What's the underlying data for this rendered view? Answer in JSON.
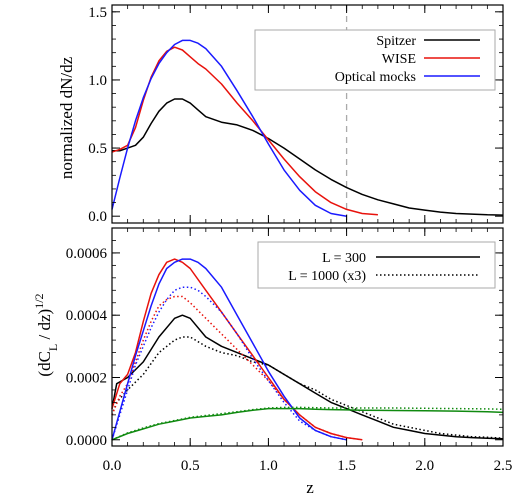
{
  "chart_data": [
    {
      "type": "line",
      "panel": "top",
      "xlabel": "",
      "ylabel": "normalized dN/dz",
      "xlim": [
        0,
        2.5
      ],
      "ylim": [
        -0.05,
        1.55
      ],
      "xticks": [
        0.0,
        0.5,
        1.0,
        1.5,
        2.0,
        2.5
      ],
      "yticks": [
        0.0,
        0.5,
        1.0,
        1.5
      ],
      "yticklabels": [
        "0.0",
        "0.5",
        "1.0",
        "1.5"
      ],
      "grid": false,
      "legend": "top-right",
      "annotations": [
        {
          "type": "vline",
          "x": 1.5,
          "style": "dashed",
          "color": "#aaaaaa"
        }
      ],
      "series": [
        {
          "name": "Spitzer",
          "color": "#000000",
          "style": "solid",
          "x": [
            0,
            0.05,
            0.1,
            0.15,
            0.2,
            0.25,
            0.3,
            0.35,
            0.4,
            0.45,
            0.5,
            0.55,
            0.6,
            0.7,
            0.8,
            0.9,
            1.0,
            1.1,
            1.2,
            1.3,
            1.4,
            1.5,
            1.6,
            1.7,
            1.8,
            1.9,
            2.0,
            2.1,
            2.2,
            2.3,
            2.4,
            2.5
          ],
          "y": [
            0.48,
            0.48,
            0.5,
            0.52,
            0.58,
            0.68,
            0.77,
            0.83,
            0.86,
            0.86,
            0.83,
            0.78,
            0.73,
            0.69,
            0.67,
            0.63,
            0.57,
            0.5,
            0.42,
            0.34,
            0.27,
            0.21,
            0.16,
            0.12,
            0.09,
            0.06,
            0.045,
            0.03,
            0.02,
            0.015,
            0.01,
            0.008
          ]
        },
        {
          "name": "WISE",
          "color": "#e8120c",
          "style": "solid",
          "x": [
            0,
            0.05,
            0.1,
            0.15,
            0.2,
            0.25,
            0.3,
            0.35,
            0.4,
            0.45,
            0.5,
            0.55,
            0.6,
            0.7,
            0.8,
            0.9,
            1.0,
            1.1,
            1.2,
            1.3,
            1.4,
            1.5,
            1.6,
            1.7
          ],
          "y": [
            0.47,
            0.49,
            0.52,
            0.65,
            0.85,
            1.02,
            1.14,
            1.21,
            1.24,
            1.22,
            1.17,
            1.12,
            1.08,
            0.97,
            0.83,
            0.7,
            0.56,
            0.42,
            0.29,
            0.18,
            0.1,
            0.05,
            0.02,
            0.01
          ]
        },
        {
          "name": "Optical mocks",
          "color": "#1a1aff",
          "style": "solid",
          "x": [
            0,
            0.05,
            0.1,
            0.15,
            0.2,
            0.25,
            0.3,
            0.35,
            0.4,
            0.45,
            0.5,
            0.55,
            0.6,
            0.7,
            0.8,
            0.9,
            1.0,
            1.1,
            1.2,
            1.3,
            1.4,
            1.5
          ],
          "y": [
            0.05,
            0.28,
            0.5,
            0.7,
            0.87,
            1.01,
            1.12,
            1.2,
            1.26,
            1.29,
            1.29,
            1.27,
            1.23,
            1.1,
            0.92,
            0.73,
            0.53,
            0.34,
            0.19,
            0.08,
            0.02,
            0.0
          ]
        }
      ]
    },
    {
      "type": "line",
      "panel": "bottom",
      "xlabel": "z",
      "ylabel": "(dC_L / dz)^1/2",
      "xlim": [
        0,
        2.5
      ],
      "ylim": [
        -2e-05,
        0.00068
      ],
      "xticks": [
        0.0,
        0.5,
        1.0,
        1.5,
        2.0,
        2.5
      ],
      "xticklabels": [
        "0.0",
        "0.5",
        "1.0",
        "1.5",
        "2.0",
        "2.5"
      ],
      "yticks": [
        0.0,
        0.0002,
        0.0004,
        0.0006
      ],
      "yticklabels": [
        "0.0000",
        "0.0002",
        "0.0004",
        "0.0006"
      ],
      "grid": false,
      "legend": "top-right",
      "legend_entries": [
        {
          "label": "L = 300",
          "style": "solid"
        },
        {
          "label": "L = 1000 (x3)",
          "style": "dotted"
        }
      ],
      "series": [
        {
          "legend": "Spitzer",
          "color": "#000000",
          "style": "solid",
          "x": [
            0,
            0.03,
            0.1,
            0.2,
            0.3,
            0.4,
            0.45,
            0.5,
            0.6,
            0.7,
            0.8,
            0.9,
            1.0,
            1.1,
            1.2,
            1.3,
            1.4,
            1.5,
            1.6,
            1.7,
            1.8,
            1.9,
            2.0,
            2.1,
            2.2,
            2.3,
            2.4,
            2.5
          ],
          "y": [
            0.0001,
            0.00018,
            0.0002,
            0.00025,
            0.00033,
            0.00039,
            0.0004,
            0.00039,
            0.00033,
            0.0003,
            0.00028,
            0.00026,
            0.00024,
            0.00021,
            0.00018,
            0.00015,
            0.00012,
            0.0001,
            8e-05,
            6e-05,
            4e-05,
            3e-05,
            2e-05,
            1.5e-05,
            1e-05,
            7e-06,
            5e-06,
            3e-06
          ]
        },
        {
          "legend": "Spitzer",
          "color": "#000000",
          "style": "dotted",
          "x": [
            0,
            0.03,
            0.1,
            0.2,
            0.3,
            0.4,
            0.45,
            0.5,
            0.6,
            0.7,
            0.8,
            0.9,
            1.0,
            1.1,
            1.2,
            1.3,
            1.4,
            1.5,
            1.6,
            1.7,
            1.8,
            1.9,
            2.0,
            2.1,
            2.2,
            2.3,
            2.4,
            2.5
          ],
          "y": [
            8e-05,
            0.00012,
            0.00016,
            0.00021,
            0.00028,
            0.00032,
            0.00033,
            0.00033,
            0.0003,
            0.00028,
            0.00027,
            0.00025,
            0.00024,
            0.00021,
            0.00018,
            0.00016,
            0.00013,
            0.00011,
            9e-05,
            7e-05,
            5e-05,
            4e-05,
            3e-05,
            2e-05,
            1.5e-05,
            1e-05,
            8e-06,
            5e-06
          ]
        },
        {
          "legend": "WISE",
          "color": "#e8120c",
          "style": "solid",
          "x": [
            0,
            0.05,
            0.1,
            0.15,
            0.2,
            0.25,
            0.3,
            0.35,
            0.4,
            0.45,
            0.5,
            0.6,
            0.7,
            0.8,
            0.9,
            1.0,
            1.1,
            1.2,
            1.3,
            1.4,
            1.5,
            1.6
          ],
          "y": [
            0.0001,
            0.00018,
            0.00021,
            0.00028,
            0.00038,
            0.00047,
            0.00053,
            0.00057,
            0.00058,
            0.00057,
            0.00055,
            0.00048,
            0.00041,
            0.00034,
            0.00027,
            0.0002,
            0.00013,
            8e-05,
            4e-05,
            2e-05,
            7e-06,
            0.0
          ]
        },
        {
          "legend": "WISE",
          "color": "#e8120c",
          "style": "dotted",
          "x": [
            0,
            0.05,
            0.1,
            0.15,
            0.2,
            0.25,
            0.3,
            0.35,
            0.4,
            0.45,
            0.5,
            0.6,
            0.7,
            0.8,
            0.9,
            1.0,
            1.1,
            1.2,
            1.3,
            1.4,
            1.5,
            1.6
          ],
          "y": [
            8e-05,
            0.00014,
            0.00018,
            0.00025,
            0.00032,
            0.00038,
            0.00043,
            0.00045,
            0.00046,
            0.00046,
            0.00044,
            0.00039,
            0.00034,
            0.00029,
            0.00024,
            0.00019,
            0.00013,
            8e-05,
            4e-05,
            2e-05,
            7e-06,
            0.0
          ]
        },
        {
          "legend": "Optical mocks",
          "color": "#1a1aff",
          "style": "solid",
          "x": [
            0,
            0.05,
            0.1,
            0.15,
            0.2,
            0.25,
            0.3,
            0.35,
            0.4,
            0.45,
            0.5,
            0.55,
            0.6,
            0.7,
            0.8,
            0.9,
            1.0,
            1.1,
            1.2,
            1.3,
            1.4,
            1.5
          ],
          "y": [
            0.0,
            9e-05,
            0.00018,
            0.00027,
            0.00035,
            0.00043,
            0.0005,
            0.00055,
            0.00057,
            0.00058,
            0.00058,
            0.00057,
            0.00055,
            0.00049,
            0.0004,
            0.00031,
            0.00022,
            0.00014,
            7e-05,
            3e-05,
            1e-05,
            0.0
          ]
        },
        {
          "legend": "Optical mocks",
          "color": "#1a1aff",
          "style": "dotted",
          "x": [
            0,
            0.05,
            0.1,
            0.15,
            0.2,
            0.25,
            0.3,
            0.35,
            0.4,
            0.45,
            0.5,
            0.55,
            0.6,
            0.7,
            0.8,
            0.9,
            1.0,
            1.1,
            1.2,
            1.3,
            1.4,
            1.5
          ],
          "y": [
            0.0,
            8e-05,
            0.00016,
            0.00024,
            0.0003,
            0.00036,
            0.00041,
            0.00045,
            0.00048,
            0.00049,
            0.00049,
            0.00048,
            0.00046,
            0.00041,
            0.00034,
            0.00026,
            0.00019,
            0.00012,
            6e-05,
            3e-05,
            1e-05,
            0.0
          ]
        },
        {
          "color": "#108a10",
          "style": "solid",
          "x": [
            0,
            0.1,
            0.2,
            0.3,
            0.4,
            0.5,
            0.6,
            0.7,
            0.8,
            0.9,
            1.0,
            1.1,
            1.2,
            1.3,
            1.4,
            1.5,
            1.6,
            1.8,
            2.0,
            2.2,
            2.4,
            2.5
          ],
          "y": [
            0.0,
            2e-05,
            3.5e-05,
            5e-05,
            6e-05,
            7e-05,
            7.5e-05,
            8e-05,
            8.8e-05,
            9.5e-05,
            0.0001,
            0.0001,
            0.0001,
            9.8e-05,
            9.7e-05,
            9.6e-05,
            9.5e-05,
            9.4e-05,
            9.3e-05,
            9.2e-05,
            9e-05,
            8.8e-05
          ]
        },
        {
          "color": "#108a10",
          "style": "dotted",
          "x": [
            0,
            0.1,
            0.2,
            0.3,
            0.4,
            0.5,
            0.6,
            0.7,
            0.8,
            0.9,
            1.0,
            1.1,
            1.2,
            1.3,
            1.4,
            1.5,
            1.6,
            1.8,
            2.0,
            2.2,
            2.4,
            2.5
          ],
          "y": [
            0.0,
            2.2e-05,
            3.8e-05,
            5.2e-05,
            6.2e-05,
            7.2e-05,
            7.8e-05,
            8.4e-05,
            9e-05,
            9.7e-05,
            0.000102,
            0.000104,
            0.000104,
            0.000103,
            0.000102,
            0.000102,
            0.000102,
            0.000102,
            0.000101,
            0.0001,
            9.9e-05,
            9.8e-05
          ]
        }
      ]
    }
  ]
}
